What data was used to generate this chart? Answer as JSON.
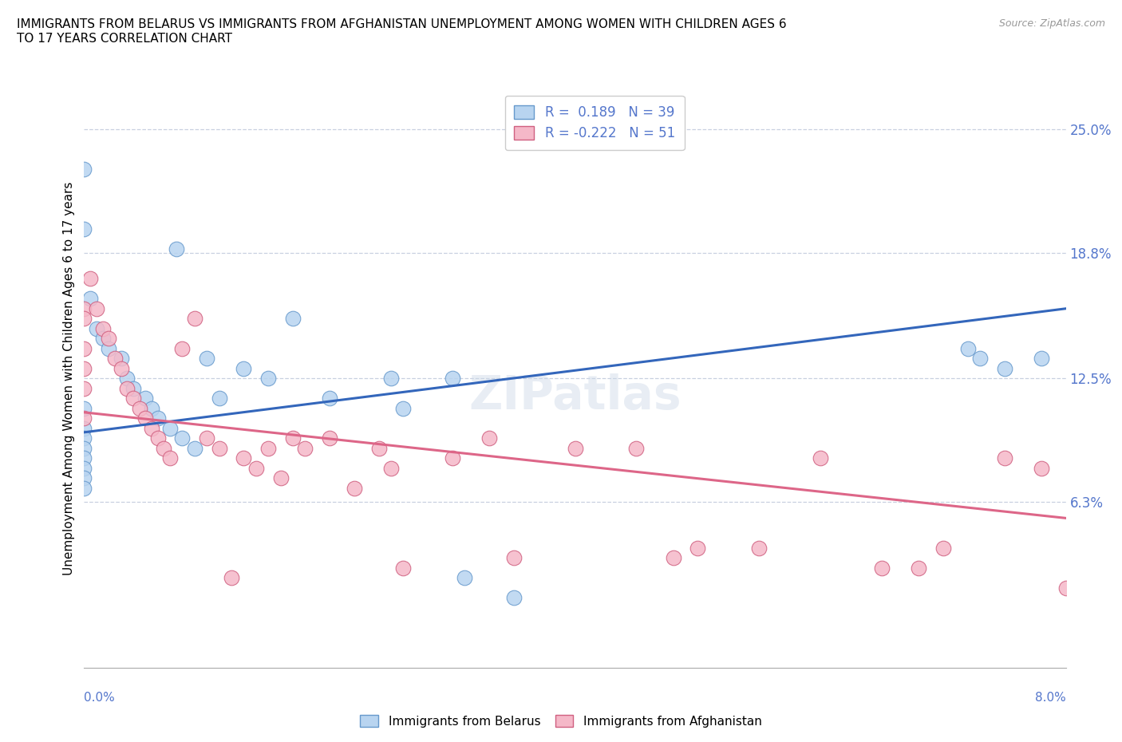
{
  "title": "IMMIGRANTS FROM BELARUS VS IMMIGRANTS FROM AFGHANISTAN UNEMPLOYMENT AMONG WOMEN WITH CHILDREN AGES 6\nTO 17 YEARS CORRELATION CHART",
  "source": "Source: ZipAtlas.com",
  "ylabel": "Unemployment Among Women with Children Ages 6 to 17 years",
  "ytick_values": [
    6.3,
    12.5,
    18.8,
    25.0
  ],
  "xmin": 0.0,
  "xmax": 8.0,
  "ymin": -2.0,
  "ymax": 27.0,
  "series_belarus": {
    "label": "Immigrants from Belarus",
    "color": "#b8d4f0",
    "edge_color": "#6699cc",
    "R": 0.189,
    "N": 39,
    "trend_color": "#3366bb",
    "trend_x0": 0.0,
    "trend_y0": 9.8,
    "trend_x1": 8.0,
    "trend_y1": 16.0,
    "x": [
      0.0,
      0.0,
      0.0,
      0.0,
      0.0,
      0.0,
      0.0,
      0.0,
      0.0,
      0.0,
      0.05,
      0.1,
      0.15,
      0.2,
      0.3,
      0.35,
      0.4,
      0.5,
      0.55,
      0.6,
      0.7,
      0.75,
      0.8,
      0.9,
      1.0,
      1.1,
      1.3,
      1.5,
      1.7,
      2.0,
      2.5,
      2.6,
      3.0,
      3.1,
      3.5,
      7.2,
      7.3,
      7.5,
      7.8
    ],
    "y": [
      23.0,
      20.0,
      11.0,
      10.0,
      9.5,
      9.0,
      8.5,
      8.0,
      7.5,
      7.0,
      16.5,
      15.0,
      14.5,
      14.0,
      13.5,
      12.5,
      12.0,
      11.5,
      11.0,
      10.5,
      10.0,
      19.0,
      9.5,
      9.0,
      13.5,
      11.5,
      13.0,
      12.5,
      15.5,
      11.5,
      12.5,
      11.0,
      12.5,
      2.5,
      1.5,
      14.0,
      13.5,
      13.0,
      13.5
    ]
  },
  "series_afghanistan": {
    "label": "Immigrants from Afghanistan",
    "color": "#f5b8c8",
    "edge_color": "#d06080",
    "R": -0.222,
    "N": 51,
    "trend_color": "#dd6688",
    "trend_x0": 0.0,
    "trend_y0": 10.8,
    "trend_x1": 8.0,
    "trend_y1": 5.5,
    "x": [
      0.0,
      0.0,
      0.0,
      0.0,
      0.0,
      0.0,
      0.05,
      0.1,
      0.15,
      0.2,
      0.25,
      0.3,
      0.35,
      0.4,
      0.45,
      0.5,
      0.55,
      0.6,
      0.65,
      0.7,
      0.8,
      0.9,
      1.0,
      1.1,
      1.2,
      1.3,
      1.4,
      1.5,
      1.6,
      1.7,
      1.8,
      2.0,
      2.2,
      2.4,
      2.5,
      2.6,
      3.0,
      3.3,
      3.5,
      4.0,
      4.5,
      4.8,
      5.0,
      5.5,
      6.0,
      6.5,
      6.8,
      7.0,
      7.5,
      7.8,
      8.0
    ],
    "y": [
      16.0,
      15.5,
      14.0,
      13.0,
      12.0,
      10.5,
      17.5,
      16.0,
      15.0,
      14.5,
      13.5,
      13.0,
      12.0,
      11.5,
      11.0,
      10.5,
      10.0,
      9.5,
      9.0,
      8.5,
      14.0,
      15.5,
      9.5,
      9.0,
      2.5,
      8.5,
      8.0,
      9.0,
      7.5,
      9.5,
      9.0,
      9.5,
      7.0,
      9.0,
      8.0,
      3.0,
      8.5,
      9.5,
      3.5,
      9.0,
      9.0,
      3.5,
      4.0,
      4.0,
      8.5,
      3.0,
      3.0,
      4.0,
      8.5,
      8.0,
      2.0
    ]
  },
  "watermark": "ZIPatlas"
}
